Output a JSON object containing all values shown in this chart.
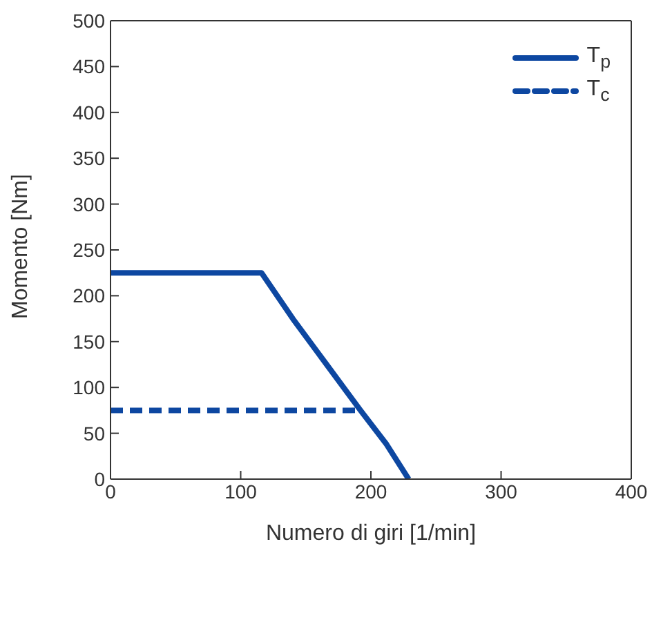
{
  "chart_data": {
    "type": "line",
    "xlabel": "Numero di giri [1/min]",
    "ylabel": "Momento [Nm]",
    "xlim": [
      0,
      400
    ],
    "xticks": [
      0,
      100,
      200,
      300,
      400
    ],
    "ylim": [
      0,
      500
    ],
    "yticks": [
      0,
      50,
      100,
      150,
      200,
      250,
      300,
      350,
      400,
      450,
      500
    ],
    "legend": "top right",
    "marker": "none",
    "series": [
      {
        "name": "T$_{p}$",
        "color": "#0d47a1",
        "line_style": "solid",
        "x": [
          0,
          116,
          140,
          166,
          192,
          212,
          229
        ],
        "values": [
          225,
          225,
          175,
          125,
          75,
          38,
          0
        ]
      },
      {
        "name": "T$_{c}$",
        "color": "#0d47a1",
        "line_style": "dashed",
        "x": [
          0,
          192
        ],
        "values": [
          75,
          75
        ]
      }
    ]
  }
}
